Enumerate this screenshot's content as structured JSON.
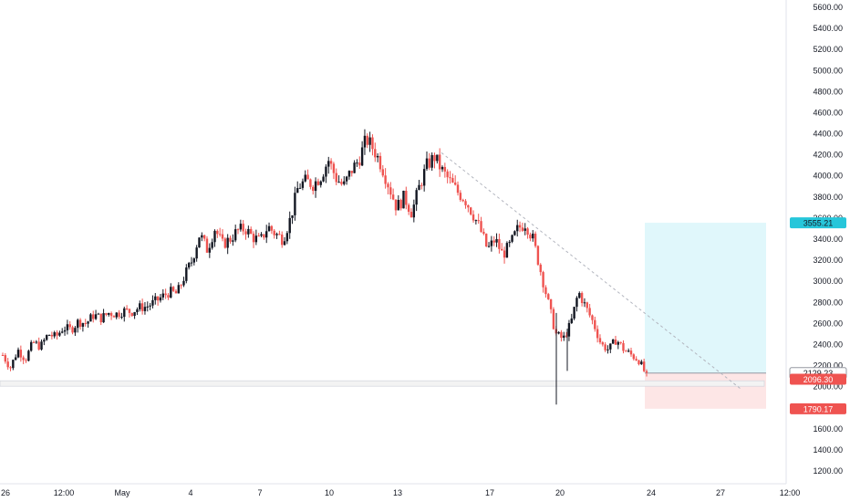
{
  "chart_data": {
    "type": "candlestick",
    "ylim": [
      1100,
      5700
    ],
    "y_ticks": [
      "1200.00",
      "1400.00",
      "1600.00",
      "1800.00",
      "2000.00",
      "2200.00",
      "2400.00",
      "2600.00",
      "2800.00",
      "3000.00",
      "3200.00",
      "3400.00",
      "3600.00",
      "3800.00",
      "4000.00",
      "4200.00",
      "4400.00",
      "4600.00",
      "4800.00",
      "5000.00",
      "5200.00",
      "5400.00",
      "5600.00"
    ],
    "x_ticks": [
      "26",
      "12:00",
      "May",
      "4",
      "7",
      "10",
      "13",
      "17",
      "20",
      "24",
      "27",
      "12:00"
    ],
    "grid": false,
    "colors": {
      "up": "#131722",
      "down": "#ef5350",
      "target": "#e0f7fb",
      "stop": "#fde6e6",
      "target_tag": "#26c6da",
      "stop_tag": "#ef5350"
    },
    "price_tags": {
      "target": "3555.21",
      "current_level": "2129.23",
      "last": "2096.30",
      "stop": "1790.17"
    },
    "levels": {
      "target": 3555.21,
      "entry": 2129.23,
      "last": 2096.3,
      "stop": 1790.17,
      "support": 2030
    },
    "trendline": {
      "from": 4220,
      "to": 1980
    },
    "ohlc_path": [
      2300,
      2180,
      2350,
      2260,
      2420,
      2380,
      2500,
      2470,
      2560,
      2540,
      2620,
      2600,
      2680,
      2650,
      2700,
      2690,
      2720,
      2710,
      2750,
      2760,
      2800,
      2850,
      2900,
      2880,
      3050,
      3200,
      3450,
      3300,
      3500,
      3350,
      3400,
      3480,
      3500,
      3420,
      3380,
      3520,
      3450,
      3400,
      3600,
      3900,
      3950,
      3920,
      4000,
      4150,
      3980,
      3900,
      4050,
      4150,
      4350,
      4250,
      4100,
      3900,
      3700,
      3800,
      3650,
      3900,
      4100,
      4180,
      4050,
      3950,
      3850,
      3780,
      3650,
      3500,
      3300,
      3400,
      3250,
      3350,
      3500,
      3550,
      3400,
      3100,
      2800,
      2500,
      2450,
      2600,
      2900,
      2750,
      2600,
      2400,
      2350,
      2450,
      2350,
      2300,
      2250,
      2096.3
    ]
  }
}
